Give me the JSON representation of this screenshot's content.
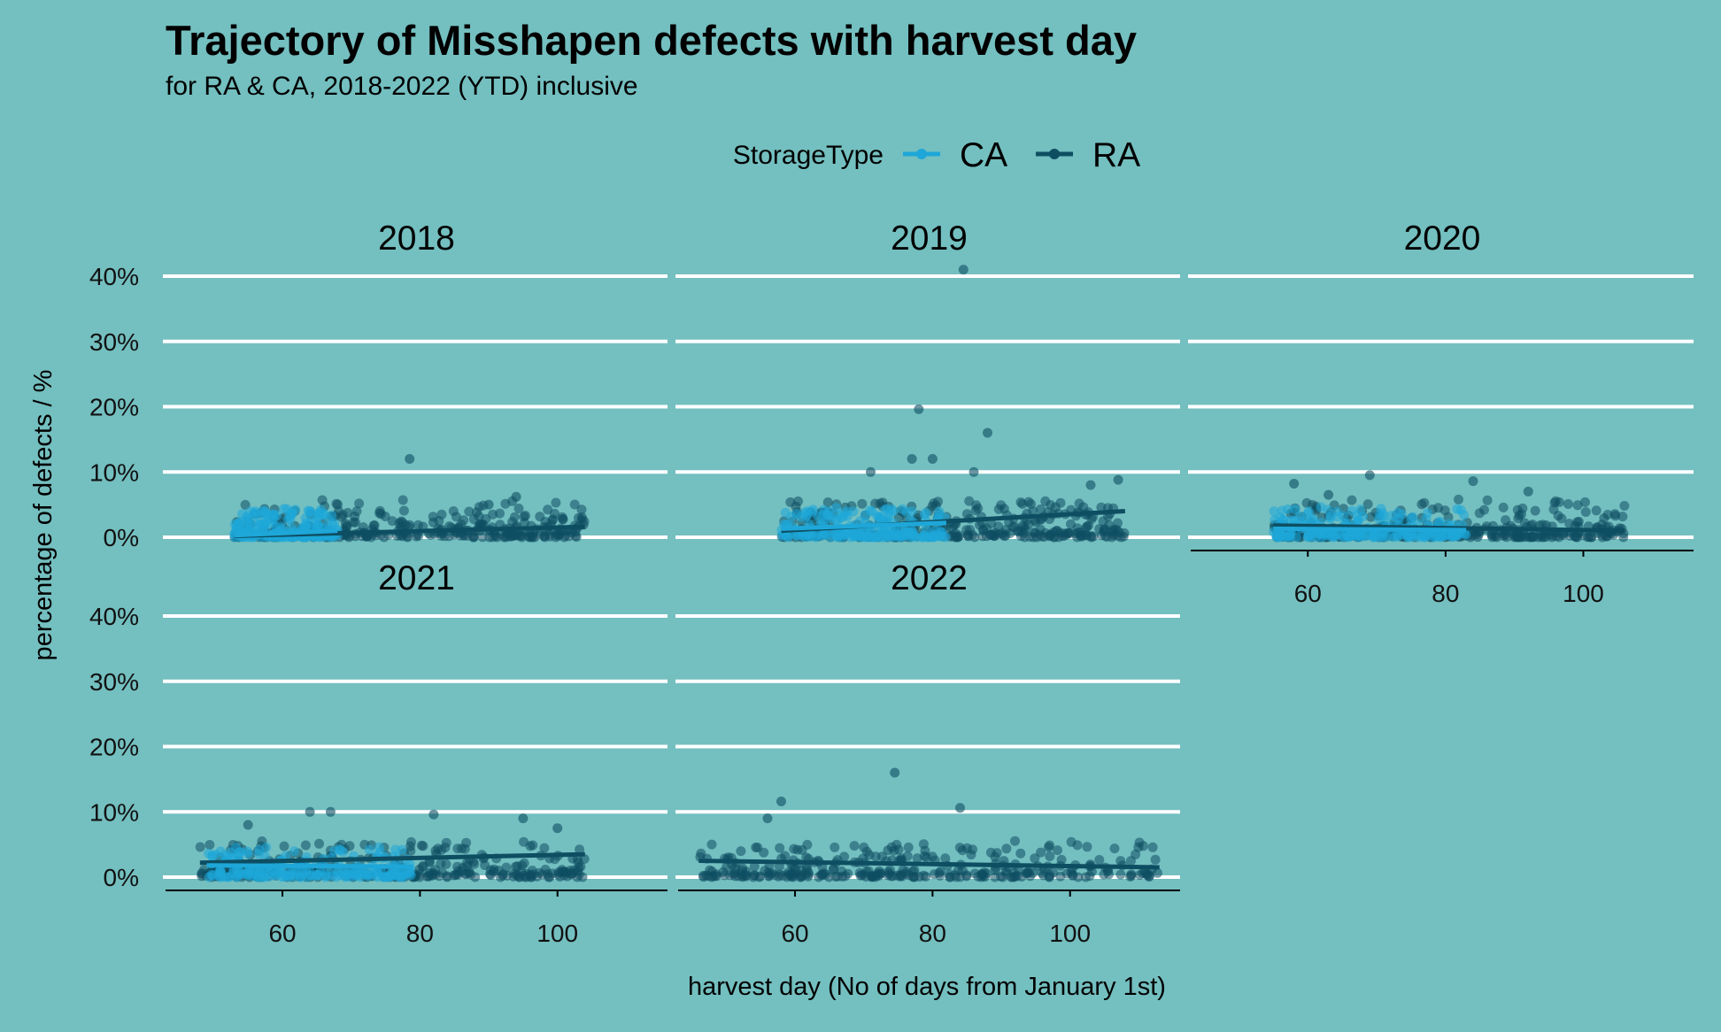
{
  "chart_data": {
    "type": "scatter",
    "title": "Trajectory of Misshapen defects with harvest day",
    "subtitle": "for RA & CA, 2018-2022 (YTD) inclusive",
    "xlabel": "harvest day (No of days from January 1st)",
    "ylabel": "percentage of defects / %",
    "legend": {
      "title": "StorageType",
      "placement": "top",
      "entries": [
        {
          "name": "CA",
          "color": "#1ea7d8"
        },
        {
          "name": "RA",
          "color": "#0e4e62"
        }
      ]
    },
    "grid": "horizontal major only",
    "xlim": [
      43,
      116
    ],
    "ylim": [
      -1.5,
      41.5
    ],
    "x_ticks": [
      60,
      80,
      100
    ],
    "x_tick_labels": [
      "60",
      "80",
      "100"
    ],
    "y_ticks": [
      0,
      10,
      20,
      30,
      40
    ],
    "y_tick_labels": [
      "0%",
      "10%",
      "20%",
      "30%",
      "40%"
    ],
    "facets": [
      {
        "label": "2018",
        "RA_range": [
          53,
          104
        ],
        "CA_range": [
          53,
          68
        ],
        "trend": {
          "RA": [
            [
              53,
              0.2
            ],
            [
              104,
              1.6
            ]
          ],
          "CA": [
            [
              53,
              0.3
            ],
            [
              68,
              1.0
            ]
          ]
        },
        "highlights": [
          {
            "series": "RA",
            "x": 78.5,
            "y": 12.0
          },
          {
            "series": "RA",
            "x": 94.0,
            "y": 6.2
          },
          {
            "series": "RA",
            "x": 90.0,
            "y": 5.0
          },
          {
            "series": "CA",
            "x": 64.0,
            "y": 4.0
          }
        ]
      },
      {
        "label": "2019",
        "RA_range": [
          58,
          108
        ],
        "CA_range": [
          58,
          82
        ],
        "trend": {
          "RA": [
            [
              58,
              1.0
            ],
            [
              108,
              4.0
            ]
          ],
          "CA": [
            [
              58,
              1.3
            ],
            [
              82,
              2.2
            ]
          ]
        },
        "highlights": [
          {
            "series": "RA",
            "x": 84.5,
            "y": 41.0
          },
          {
            "series": "RA",
            "x": 78.0,
            "y": 19.6
          },
          {
            "series": "RA",
            "x": 88.0,
            "y": 16.0
          },
          {
            "series": "RA",
            "x": 77.0,
            "y": 12.0
          },
          {
            "series": "RA",
            "x": 80.0,
            "y": 12.0
          },
          {
            "series": "RA",
            "x": 86.0,
            "y": 10.0
          },
          {
            "series": "RA",
            "x": 71.0,
            "y": 10.0
          },
          {
            "series": "RA",
            "x": 107.0,
            "y": 8.8
          },
          {
            "series": "RA",
            "x": 103.0,
            "y": 8.0
          },
          {
            "series": "CA",
            "x": 66.0,
            "y": 4.5
          }
        ]
      },
      {
        "label": "2020",
        "RA_range": [
          55,
          106
        ],
        "CA_range": [
          55,
          83
        ],
        "trend": {
          "RA": [
            [
              55,
              1.8
            ],
            [
              106,
              1.0
            ]
          ],
          "CA": [
            [
              55,
              1.3
            ],
            [
              83,
              1.1
            ]
          ]
        },
        "highlights": [
          {
            "series": "RA",
            "x": 69.0,
            "y": 9.5
          },
          {
            "series": "RA",
            "x": 58.0,
            "y": 8.2
          },
          {
            "series": "RA",
            "x": 84.0,
            "y": 8.6
          },
          {
            "series": "RA",
            "x": 92.0,
            "y": 7.0
          },
          {
            "series": "RA",
            "x": 63.0,
            "y": 6.5
          }
        ]
      },
      {
        "label": "2021",
        "RA_range": [
          48,
          104
        ],
        "CA_range": [
          49,
          79
        ],
        "trend": {
          "RA": [
            [
              48,
              2.2
            ],
            [
              104,
              3.5
            ]
          ],
          "CA": [
            [
              49,
              1.8
            ],
            [
              79,
              1.6
            ]
          ]
        },
        "highlights": [
          {
            "series": "RA",
            "x": 64.0,
            "y": 10.0
          },
          {
            "series": "RA",
            "x": 67.0,
            "y": 10.0
          },
          {
            "series": "RA",
            "x": 82.0,
            "y": 9.6
          },
          {
            "series": "RA",
            "x": 95.0,
            "y": 9.0
          },
          {
            "series": "RA",
            "x": 55.0,
            "y": 8.0
          },
          {
            "series": "RA",
            "x": 100.0,
            "y": 7.5
          }
        ]
      },
      {
        "label": "2022",
        "RA_range": [
          46,
          113
        ],
        "CA_range": null,
        "trend": {
          "RA": [
            [
              46,
              2.5
            ],
            [
              113,
              1.5
            ]
          ]
        },
        "highlights": [
          {
            "series": "RA",
            "x": 74.5,
            "y": 16.0
          },
          {
            "series": "RA",
            "x": 58.0,
            "y": 11.6
          },
          {
            "series": "RA",
            "x": 84.0,
            "y": 10.6
          },
          {
            "series": "RA",
            "x": 56.0,
            "y": 9.0
          }
        ]
      }
    ]
  }
}
